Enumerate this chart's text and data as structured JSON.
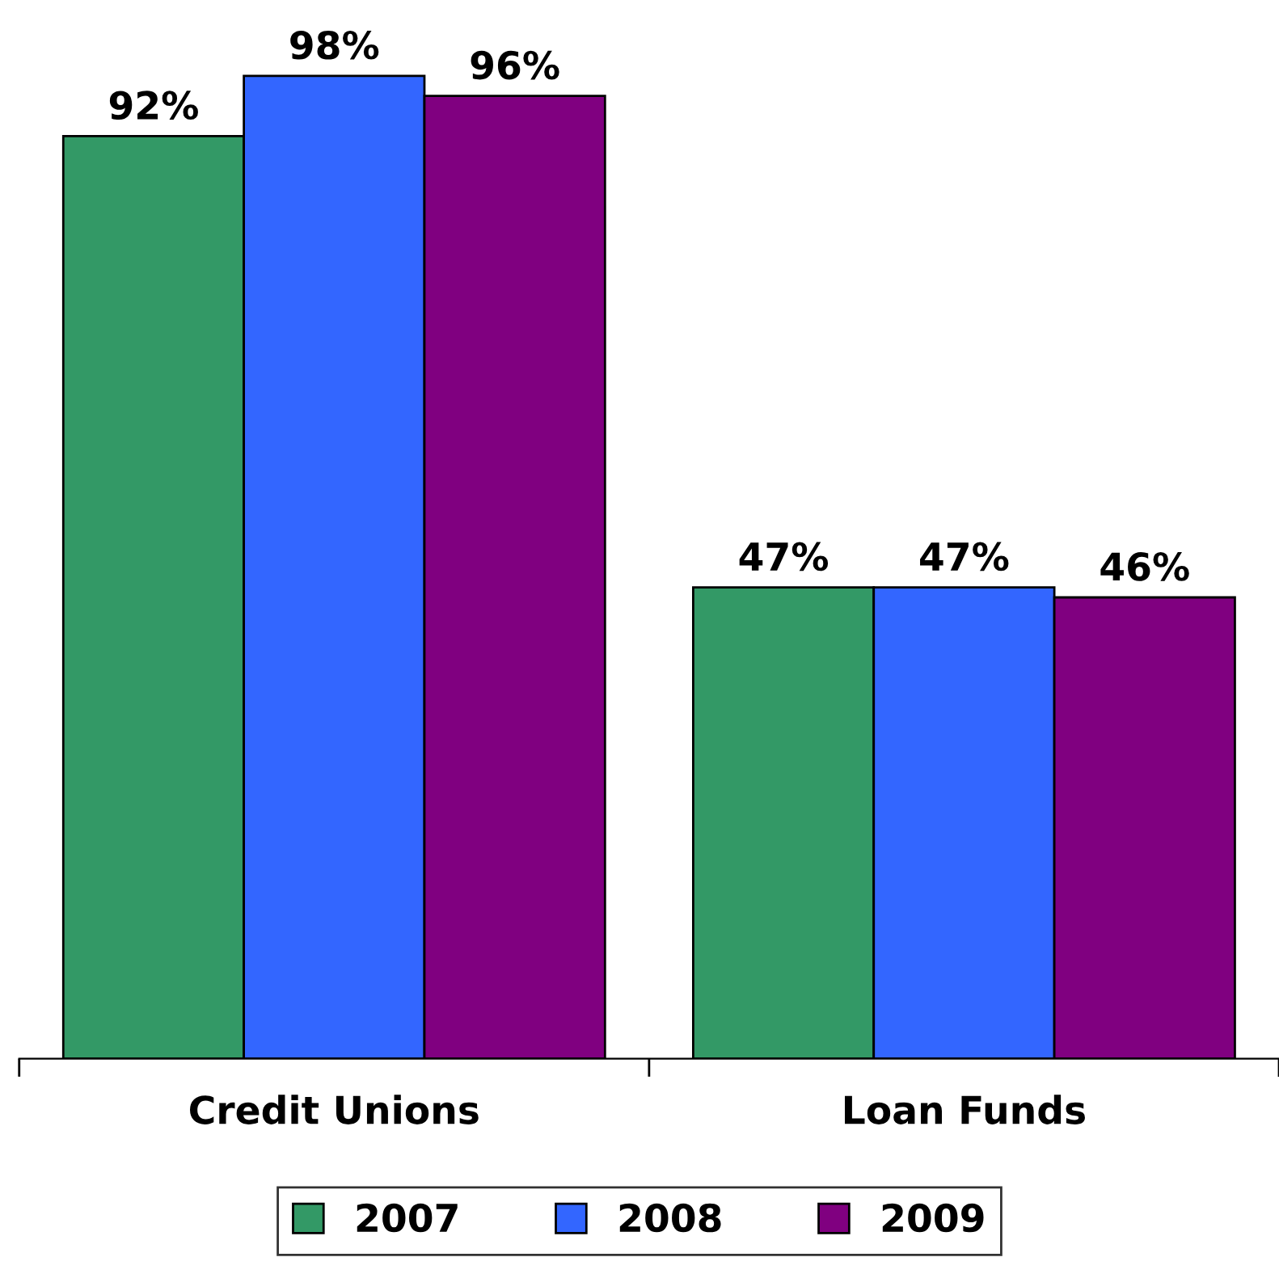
{
  "chart_data": {
    "type": "bar",
    "categories": [
      "Credit Unions",
      "Loan Funds"
    ],
    "series": [
      {
        "name": "2007",
        "color": "#339966",
        "values": [
          92,
          47
        ],
        "value_labels": [
          "92%",
          "47%"
        ]
      },
      {
        "name": "2008",
        "color": "#3366ff",
        "values": [
          98,
          47
        ],
        "value_labels": [
          "98%",
          "47%"
        ]
      },
      {
        "name": "2009",
        "color": "#800080",
        "values": [
          96,
          46
        ],
        "value_labels": [
          "96%",
          "46%"
        ]
      }
    ],
    "legend": "bottom",
    "grid": false
  }
}
